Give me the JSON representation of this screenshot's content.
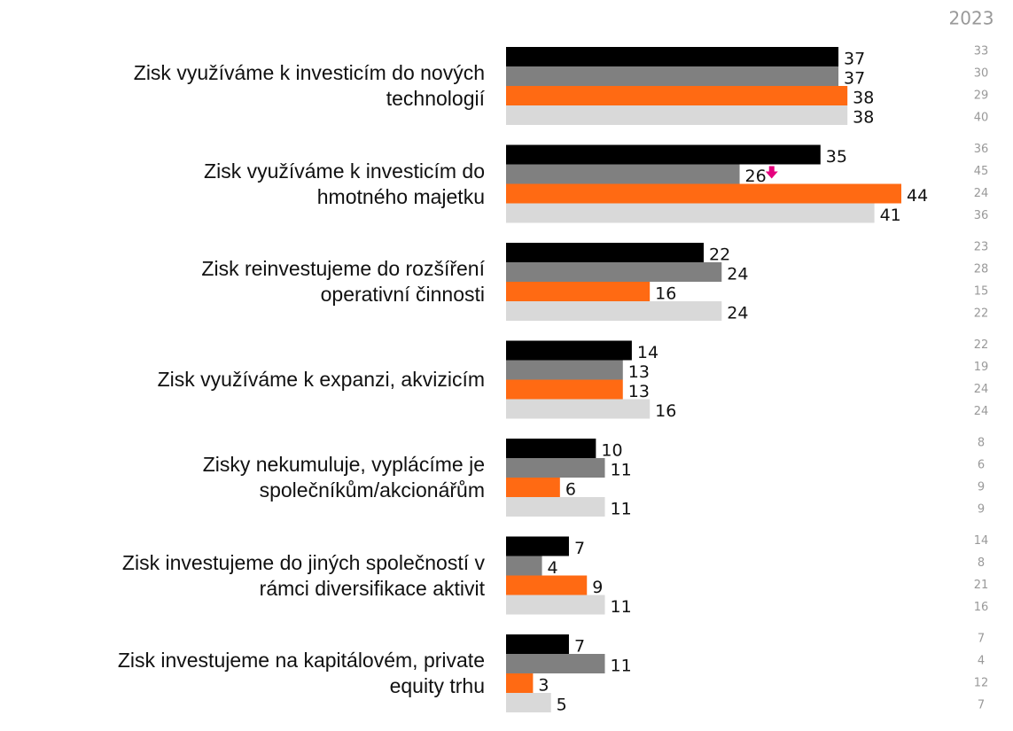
{
  "chart_data": {
    "type": "grouped_barh",
    "categories": [
      "Zisk využíváme k investicím do nových\ntechnologií",
      "Zisk využíváme k investicím do\nhmotného majetku",
      "Zisk reinvestujeme do rozšíření\noperativní činnosti",
      "Zisk využíváme k expanzi, akvizicím",
      "Zisky nekumuluje, vyplácíme je\nspolečníkům/akcionářům",
      "Zisk investujeme do jiných společností v\nrámci diversifikace aktivit",
      "Zisk investujeme na kapitálovém, private\nequity trhu"
    ],
    "series": [
      {
        "color": "#000000",
        "values": [
          37,
          35,
          22,
          14,
          10,
          7,
          7
        ]
      },
      {
        "color": "#808080",
        "values": [
          37,
          26,
          24,
          13,
          11,
          4,
          11
        ]
      },
      {
        "color": "#ff6a13",
        "values": [
          38,
          44,
          16,
          13,
          6,
          9,
          3
        ]
      },
      {
        "color": "#d9d9d9",
        "values": [
          38,
          41,
          24,
          16,
          11,
          11,
          5
        ]
      }
    ],
    "xlim": [
      0,
      44
    ],
    "reference": {
      "label": "2023",
      "values": [
        [
          33,
          30,
          29,
          40
        ],
        [
          36,
          45,
          24,
          36
        ],
        [
          23,
          28,
          15,
          22
        ],
        [
          22,
          19,
          24,
          24
        ],
        [
          8,
          6,
          9,
          9
        ],
        [
          14,
          8,
          21,
          16
        ],
        [
          7,
          4,
          12,
          7
        ]
      ]
    },
    "significant_decrease": [
      {
        "series": 1,
        "category": 1,
        "color": "#e6007e"
      }
    ]
  }
}
